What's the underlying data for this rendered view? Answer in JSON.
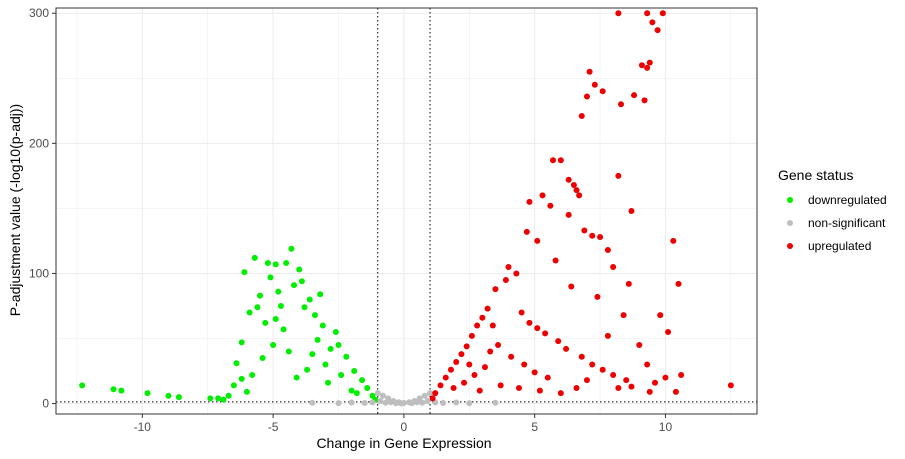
{
  "chart_data": {
    "type": "scatter",
    "title": "",
    "xlabel": "Change in Gene Expression",
    "ylabel": "P-adjustment value (-log10(p-adj))",
    "xlim": [
      -13.3,
      13.5
    ],
    "ylim": [
      -8,
      304
    ],
    "x_ticks": [
      -10,
      -5,
      0,
      5,
      10
    ],
    "y_ticks": [
      0,
      100,
      200,
      300
    ],
    "grid": true,
    "threshold_lines": {
      "vertical": [
        -1,
        1
      ],
      "horizontal": [
        1.3
      ]
    },
    "legend": {
      "title": "Gene status",
      "placement": "right",
      "entries": [
        {
          "label": "downregulated",
          "color": "#00EE00"
        },
        {
          "label": "non-significant",
          "color": "#BEBEBE"
        },
        {
          "label": "upregulated",
          "color": "#EE0000"
        }
      ]
    },
    "series": [
      {
        "name": "downregulated",
        "color": "#00EE00",
        "points": [
          [
            -12.3,
            14
          ],
          [
            -11.1,
            11
          ],
          [
            -10.8,
            10
          ],
          [
            -9.8,
            8
          ],
          [
            -9.0,
            6
          ],
          [
            -8.6,
            5
          ],
          [
            -7.4,
            4
          ],
          [
            -7.1,
            4
          ],
          [
            -6.9,
            3
          ],
          [
            -6.5,
            14
          ],
          [
            -6.2,
            19
          ],
          [
            -6.4,
            31
          ],
          [
            -6.2,
            47
          ],
          [
            -5.9,
            70
          ],
          [
            -5.6,
            74
          ],
          [
            -6.1,
            101
          ],
          [
            -5.7,
            112
          ],
          [
            -5.2,
            108
          ],
          [
            -4.9,
            107
          ],
          [
            -5.1,
            97
          ],
          [
            -4.8,
            86
          ],
          [
            -5.5,
            83
          ],
          [
            -5.3,
            62
          ],
          [
            -4.3,
            119
          ],
          [
            -4.5,
            108
          ],
          [
            -4.0,
            103
          ],
          [
            -3.9,
            94
          ],
          [
            -3.6,
            80
          ],
          [
            -3.4,
            68
          ],
          [
            -3.1,
            60
          ],
          [
            -4.2,
            91
          ],
          [
            -3.8,
            74
          ],
          [
            -2.6,
            55
          ],
          [
            -2.2,
            36
          ],
          [
            -1.9,
            25
          ],
          [
            -1.6,
            18
          ],
          [
            -1.4,
            12
          ],
          [
            -1.2,
            6
          ],
          [
            -1.1,
            3
          ],
          [
            -2.8,
            42
          ],
          [
            -3.3,
            49
          ],
          [
            -4.6,
            57
          ],
          [
            -5.0,
            45
          ],
          [
            -4.4,
            40
          ],
          [
            -3.0,
            30
          ],
          [
            -2.4,
            22
          ],
          [
            -3.7,
            26
          ],
          [
            -4.1,
            20
          ],
          [
            -5.4,
            35
          ],
          [
            -5.8,
            22
          ],
          [
            -2.0,
            10
          ],
          [
            -2.9,
            16
          ],
          [
            -3.5,
            38
          ],
          [
            -4.7,
            75
          ],
          [
            -4.9,
            65
          ],
          [
            -3.2,
            84
          ],
          [
            -2.5,
            45
          ],
          [
            -1.8,
            8
          ],
          [
            -6.0,
            9
          ],
          [
            -6.7,
            6
          ]
        ]
      },
      {
        "name": "non-significant",
        "color": "#BEBEBE",
        "points": [
          [
            -1.0,
            8
          ],
          [
            -0.8,
            6
          ],
          [
            -0.6,
            4
          ],
          [
            -0.4,
            2
          ],
          [
            -0.2,
            1
          ],
          [
            0.0,
            0.5
          ],
          [
            0.2,
            1
          ],
          [
            0.4,
            2
          ],
          [
            0.6,
            4
          ],
          [
            0.8,
            6
          ],
          [
            1.0,
            8
          ],
          [
            -0.9,
            2
          ],
          [
            -0.5,
            1
          ],
          [
            0.5,
            1
          ],
          [
            0.9,
            2
          ],
          [
            -0.3,
            0.3
          ],
          [
            0.3,
            0.3
          ],
          [
            -0.7,
            0.6
          ],
          [
            0.7,
            0.6
          ],
          [
            -1.5,
            0.5
          ],
          [
            1.5,
            0.5
          ],
          [
            -2.5,
            0.4
          ],
          [
            2.5,
            0.4
          ],
          [
            -3.5,
            0.6
          ],
          [
            3.5,
            0.6
          ],
          [
            -2.0,
            0.8
          ],
          [
            2.0,
            0.8
          ],
          [
            -1.2,
            0.9
          ],
          [
            1.2,
            0.9
          ],
          [
            -0.1,
            0.2
          ]
        ]
      },
      {
        "name": "upregulated",
        "color": "#EE0000",
        "points": [
          [
            8.2,
            300
          ],
          [
            9.3,
            300
          ],
          [
            9.9,
            300
          ],
          [
            9.5,
            293
          ],
          [
            9.7,
            287
          ],
          [
            9.4,
            262
          ],
          [
            9.3,
            258
          ],
          [
            9.1,
            260
          ],
          [
            8.3,
            230
          ],
          [
            8.8,
            237
          ],
          [
            9.2,
            233
          ],
          [
            7.1,
            255
          ],
          [
            7.3,
            245
          ],
          [
            7.6,
            240
          ],
          [
            7.0,
            236
          ],
          [
            6.8,
            221
          ],
          [
            5.7,
            187
          ],
          [
            6.0,
            187
          ],
          [
            6.3,
            172
          ],
          [
            6.5,
            168
          ],
          [
            6.6,
            164
          ],
          [
            8.2,
            175
          ],
          [
            6.7,
            160
          ],
          [
            5.3,
            160
          ],
          [
            4.8,
            155
          ],
          [
            5.6,
            152
          ],
          [
            6.3,
            145
          ],
          [
            6.9,
            133
          ],
          [
            7.2,
            129
          ],
          [
            7.5,
            128
          ],
          [
            8.7,
            148
          ],
          [
            7.8,
            118
          ],
          [
            10.3,
            125
          ],
          [
            9.8,
            68
          ],
          [
            10.5,
            92
          ],
          [
            10.1,
            55
          ],
          [
            12.5,
            14
          ],
          [
            10.6,
            22
          ],
          [
            10.0,
            20
          ],
          [
            9.6,
            16
          ],
          [
            10.4,
            9
          ],
          [
            9.4,
            9
          ],
          [
            8.7,
            13
          ],
          [
            8.2,
            12
          ],
          [
            4.3,
            100
          ],
          [
            4.0,
            105
          ],
          [
            3.9,
            95
          ],
          [
            3.5,
            88
          ],
          [
            3.2,
            73
          ],
          [
            3.0,
            66
          ],
          [
            2.8,
            60
          ],
          [
            2.6,
            52
          ],
          [
            2.4,
            44
          ],
          [
            2.2,
            38
          ],
          [
            2.0,
            32
          ],
          [
            1.8,
            26
          ],
          [
            1.6,
            20
          ],
          [
            1.4,
            14
          ],
          [
            1.2,
            8
          ],
          [
            1.1,
            4
          ],
          [
            4.5,
            70
          ],
          [
            4.8,
            62
          ],
          [
            5.1,
            58
          ],
          [
            5.4,
            54
          ],
          [
            5.9,
            48
          ],
          [
            6.2,
            42
          ],
          [
            6.8,
            36
          ],
          [
            7.2,
            30
          ],
          [
            7.6,
            26
          ],
          [
            8.0,
            22
          ],
          [
            8.5,
            18
          ],
          [
            3.6,
            45
          ],
          [
            3.3,
            40
          ],
          [
            4.1,
            36
          ],
          [
            4.6,
            30
          ],
          [
            5.0,
            24
          ],
          [
            5.5,
            20
          ],
          [
            3.1,
            28
          ],
          [
            2.7,
            22
          ],
          [
            2.3,
            16
          ],
          [
            1.9,
            12
          ],
          [
            2.9,
            10
          ],
          [
            3.7,
            14
          ],
          [
            4.4,
            12
          ],
          [
            5.2,
            10
          ],
          [
            6.0,
            8
          ],
          [
            6.6,
            12
          ],
          [
            7.0,
            18
          ],
          [
            7.8,
            52
          ],
          [
            8.4,
            68
          ],
          [
            7.4,
            82
          ],
          [
            6.4,
            90
          ],
          [
            5.8,
            110
          ],
          [
            5.1,
            125
          ],
          [
            4.7,
            132
          ],
          [
            8.0,
            105
          ],
          [
            8.6,
            92
          ],
          [
            9.0,
            45
          ],
          [
            9.3,
            30
          ],
          [
            3.4,
            60
          ],
          [
            2.5,
            30
          ]
        ]
      }
    ]
  }
}
